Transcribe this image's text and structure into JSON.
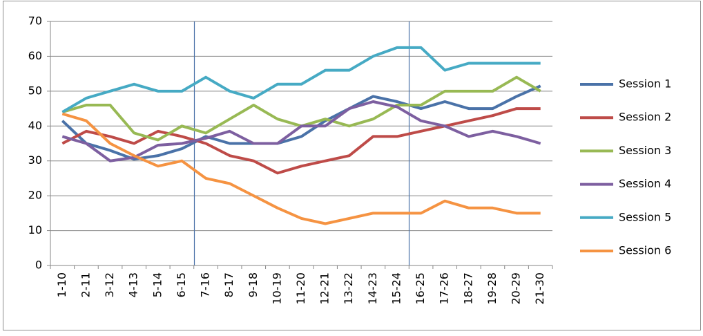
{
  "chart_data": {
    "type": "line",
    "categories": [
      "1-10",
      "2-11",
      "3-12",
      "4-13",
      "5-14",
      "6-15",
      "7-16",
      "8-17",
      "9-18",
      "10-19",
      "11-20",
      "12-21",
      "13-22",
      "14-23",
      "15-24",
      "16-25",
      "17-26",
      "18-27",
      "19-28",
      "20-29",
      "21-30"
    ],
    "series": [
      {
        "name": "Session 1",
        "color": "#4a72a8",
        "values": [
          41.5,
          35,
          33,
          30.5,
          31.5,
          33.5,
          37,
          35,
          35,
          35,
          37,
          41.5,
          45,
          48.5,
          47,
          45,
          47,
          45,
          45,
          48.5,
          51.5
        ]
      },
      {
        "name": "Session 2",
        "color": "#be4b48",
        "values": [
          35,
          38.5,
          37,
          35,
          38.5,
          37,
          35,
          31.5,
          30,
          26.5,
          28.5,
          30,
          31.5,
          37,
          37,
          38.5,
          40,
          41.5,
          43,
          45,
          45
        ]
      },
      {
        "name": "Session 3",
        "color": "#98b954",
        "values": [
          44,
          46,
          46,
          38,
          36,
          40,
          38,
          42,
          46,
          42,
          40,
          42,
          40,
          42,
          46,
          46,
          50,
          50,
          50,
          54,
          50
        ]
      },
      {
        "name": "Session 4",
        "color": "#7d5fa0",
        "values": [
          37,
          35,
          30,
          31,
          34.5,
          35,
          36.5,
          38.5,
          35,
          35,
          40,
          40,
          45,
          47,
          45.5,
          41.5,
          40,
          37,
          38.5,
          37,
          35
        ]
      },
      {
        "name": "Session 5",
        "color": "#46aac4",
        "values": [
          44,
          48,
          50,
          52,
          50,
          50,
          54,
          50,
          48,
          52,
          52,
          56,
          56,
          60,
          62.5,
          62.5,
          56,
          58,
          58,
          58,
          58
        ]
      },
      {
        "name": "Session 6",
        "color": "#f59342",
        "values": [
          43.5,
          41.5,
          35,
          31.5,
          28.5,
          30,
          25,
          23.5,
          20,
          16.5,
          13.5,
          12,
          13.5,
          15,
          15,
          15,
          18.5,
          16.5,
          16.5,
          15,
          15
        ]
      }
    ],
    "ylim": [
      0,
      70
    ],
    "yticks": [
      0,
      10,
      20,
      30,
      40,
      50,
      60,
      70
    ],
    "grid": true,
    "legend": "right"
  }
}
